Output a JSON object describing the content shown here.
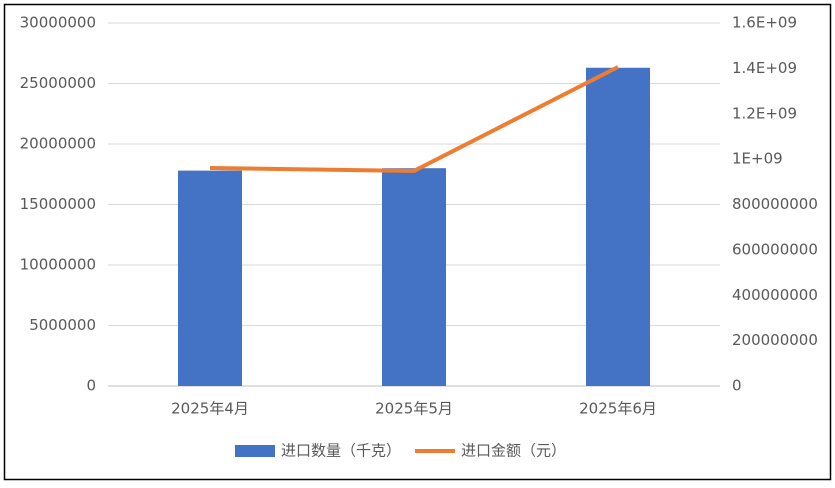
{
  "chart_data": {
    "type": "bar",
    "categories": [
      "2025年4月",
      "2025年5月",
      "2025年6月"
    ],
    "series": [
      {
        "name": "进口数量（千克）",
        "type": "bar",
        "color": "#4472c4",
        "values": [
          17800000,
          18000000,
          26300000
        ]
      },
      {
        "name": "进口金额（元）",
        "type": "line",
        "axis": "y2",
        "color": "#ed7d31",
        "values": [
          961000000,
          948000000,
          1406000000
        ]
      }
    ],
    "ylim": [
      0,
      30000000
    ],
    "yticks": [
      0,
      5000000,
      10000000,
      15000000,
      20000000,
      25000000,
      30000000
    ],
    "y2lim": [
      0,
      1600000000
    ],
    "y2ticks": [
      0,
      200000000,
      400000000,
      600000000,
      800000000,
      {
        "value": 1000000000,
        "label": "1E+09"
      },
      {
        "value": 1200000000,
        "label": "1.2E+09"
      },
      {
        "value": 1400000000,
        "label": "1.4E+09"
      },
      {
        "value": 1600000000,
        "label": "1.6E+09"
      }
    ],
    "grid": true,
    "legend": "bottom"
  }
}
